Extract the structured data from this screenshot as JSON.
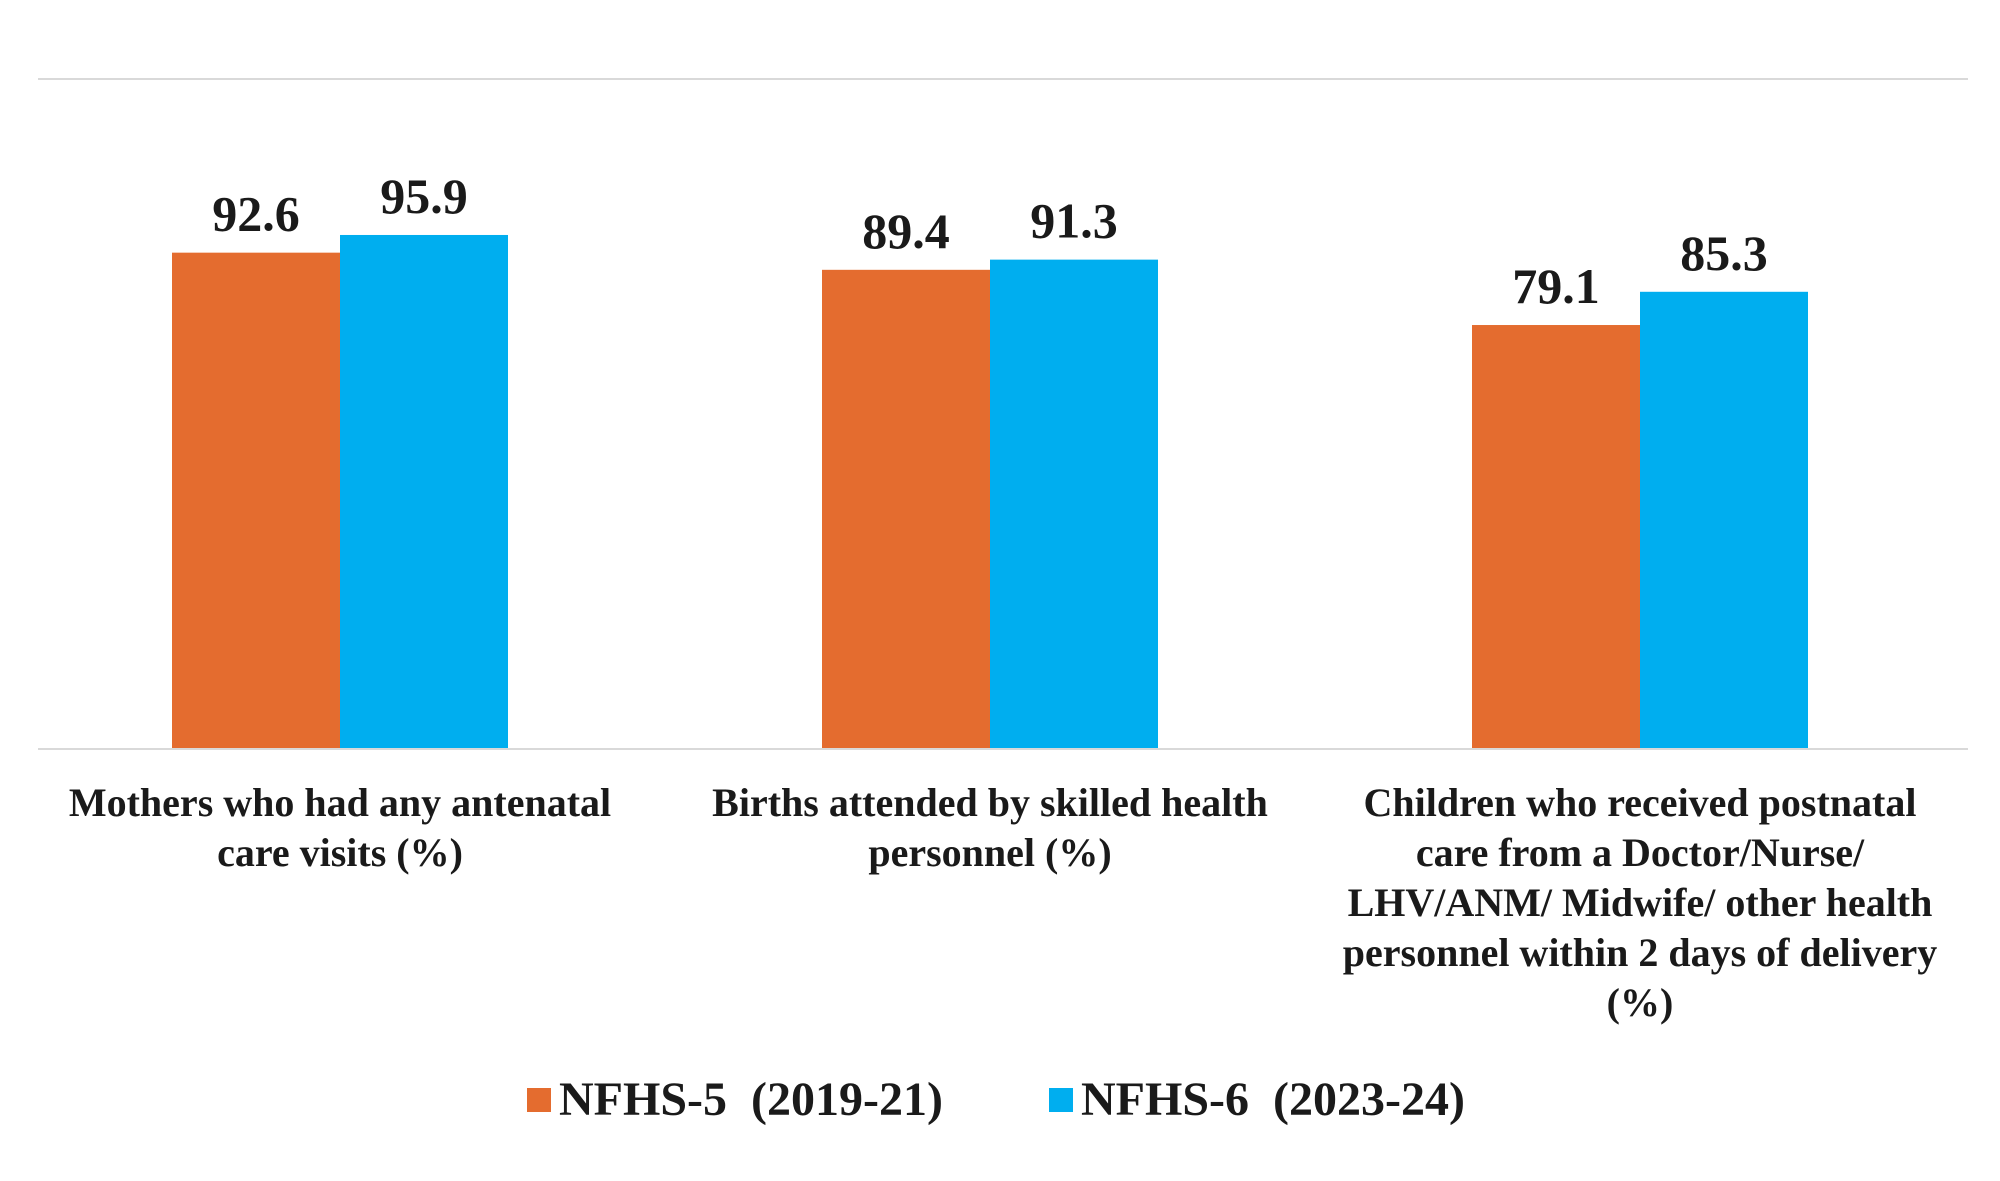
{
  "chart_data": {
    "type": "bar",
    "categories": [
      [
        "Mothers who had any antenatal",
        "care visits (%)"
      ],
      [
        "Births attended by skilled health",
        "personnel (%)"
      ],
      [
        "Children who received postnatal",
        "care from a Doctor/Nurse/",
        "LHV/ANM/ Midwife/ other health",
        "personnel within 2 days of delivery",
        "(%)"
      ]
    ],
    "series": [
      {
        "name": "NFHS-5  (2019-21)",
        "values": [
          92.6,
          89.4,
          79.1
        ],
        "labels": [
          "92.6",
          "89.4",
          "79.1"
        ],
        "color": "#E46C2F"
      },
      {
        "name": "NFHS-6  (2023-24)",
        "values": [
          95.9,
          91.3,
          85.3
        ],
        "labels": [
          "95.9",
          "91.3",
          "85.3"
        ],
        "color": "#00AEEF"
      }
    ],
    "ylim": [
      0,
      125
    ],
    "grid": false,
    "legend_position": "bottom-center",
    "title": "",
    "xlabel": "",
    "ylabel": ""
  }
}
